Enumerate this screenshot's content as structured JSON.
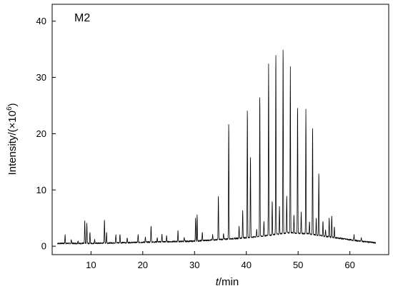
{
  "chart_data": {
    "type": "line",
    "title": "",
    "annotation": "M2",
    "xlabel_italic": "t",
    "xlabel_rest": "/min",
    "ylabel_main": "Intensity/(×10",
    "ylabel_exp": "6",
    "ylabel_close": ")",
    "xlim": [
      2.5,
      67.5
    ],
    "ylim": [
      -1.5,
      43
    ],
    "xticks": [
      10,
      20,
      30,
      40,
      50,
      60
    ],
    "yticks": [
      0,
      10,
      20,
      30,
      40
    ],
    "grid": false,
    "line_color": "#000000",
    "series": [
      {
        "baseline": [
          [
            3.5,
            0.5
          ],
          [
            10,
            0.5
          ],
          [
            20,
            0.7
          ],
          [
            30,
            0.9
          ],
          [
            35,
            1.2
          ],
          [
            40,
            1.5
          ],
          [
            45,
            2.0
          ],
          [
            48,
            2.4
          ],
          [
            52,
            2.2
          ],
          [
            55,
            1.8
          ],
          [
            58,
            1.4
          ],
          [
            62,
            0.9
          ],
          [
            65,
            0.6
          ]
        ],
        "peaks": [
          [
            5.0,
            2.0
          ],
          [
            6.2,
            1.2
          ],
          [
            7.5,
            1.0
          ],
          [
            8.8,
            4.5
          ],
          [
            9.2,
            4.0
          ],
          [
            9.8,
            2.5
          ],
          [
            10.7,
            1.3
          ],
          [
            12.6,
            4.8
          ],
          [
            13.0,
            2.5
          ],
          [
            14.8,
            2.0
          ],
          [
            15.6,
            2.2
          ],
          [
            17.0,
            1.5
          ],
          [
            19.1,
            2.0
          ],
          [
            20.5,
            1.6
          ],
          [
            21.6,
            3.7
          ],
          [
            22.8,
            1.5
          ],
          [
            23.7,
            2.2
          ],
          [
            24.6,
            1.8
          ],
          [
            26.8,
            2.8
          ],
          [
            28.0,
            1.5
          ],
          [
            30.2,
            5.0
          ],
          [
            30.5,
            5.5
          ],
          [
            31.5,
            2.5
          ],
          [
            33.5,
            2.0
          ],
          [
            34.6,
            9.0
          ],
          [
            35.6,
            2.2
          ],
          [
            36.6,
            22.2
          ],
          [
            38.6,
            3.5
          ],
          [
            39.3,
            6.5
          ],
          [
            40.2,
            24.5
          ],
          [
            40.8,
            16.0
          ],
          [
            42.0,
            3.0
          ],
          [
            42.6,
            27.0
          ],
          [
            43.4,
            4.5
          ],
          [
            44.3,
            32.5
          ],
          [
            45.0,
            8.0
          ],
          [
            45.7,
            34.6
          ],
          [
            46.4,
            7.0
          ],
          [
            47.1,
            35.8
          ],
          [
            47.8,
            9.0
          ],
          [
            48.5,
            31.8
          ],
          [
            49.2,
            5.5
          ],
          [
            49.9,
            25.2
          ],
          [
            50.6,
            6.0
          ],
          [
            51.5,
            24.3
          ],
          [
            52.2,
            4.5
          ],
          [
            52.8,
            21.4
          ],
          [
            53.5,
            5.0
          ],
          [
            54.0,
            13.2
          ],
          [
            54.8,
            4.5
          ],
          [
            55.3,
            3.0
          ],
          [
            56.0,
            5.0
          ],
          [
            56.5,
            5.5
          ],
          [
            57.0,
            3.5
          ],
          [
            58.2,
            1.5
          ],
          [
            60.8,
            2.0
          ],
          [
            62.2,
            1.5
          ]
        ]
      }
    ]
  }
}
